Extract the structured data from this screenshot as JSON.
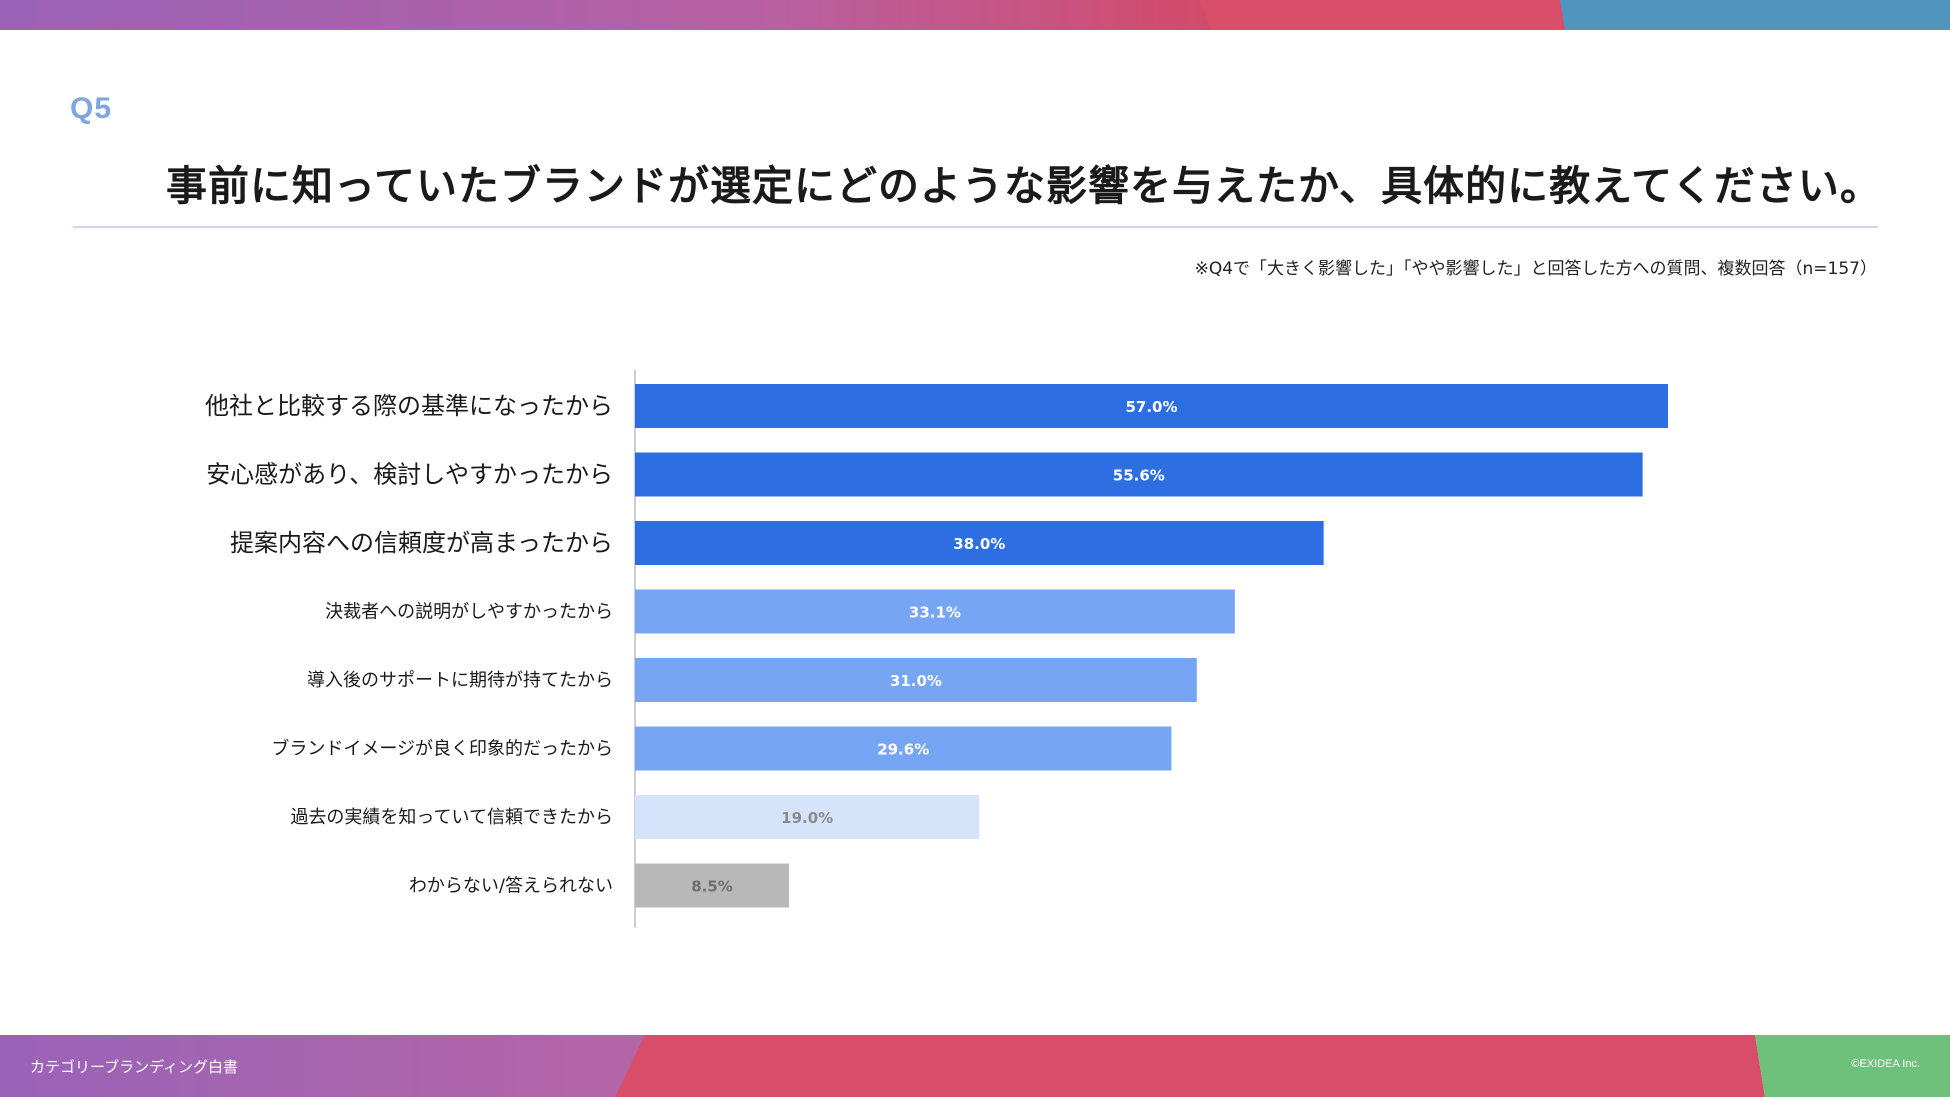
{
  "header": {
    "question_number": "Q5",
    "title": "事前に知っていたブランドが選定にどのような影響を与えたか、具体的に教えてください。",
    "note": "※Q4で「大きく影響した」「やや影響した」と回答した方への質問、複数回答（n=157）"
  },
  "footer": {
    "left": "カテゴリーブランディング白書",
    "right": "©EXIDEA Inc."
  },
  "colors": {
    "dark_blue": "#2d6fe3",
    "mid_blue": "#76a5f4",
    "light_blue": "#d6e4fb",
    "gray": "#b8b8b8",
    "question_accent": "#7fa6e0"
  },
  "chart_data": {
    "type": "bar",
    "orientation": "horizontal",
    "categories": [
      "他社と比較する際の基準になったから",
      "安心感があり、検討しやすかったから",
      "提案内容への信頼度が高まったから",
      "決裁者への説明がしやすかったから",
      "導入後のサポートに期待が持てたから",
      "ブランドイメージが良く印象的だったから",
      "過去の実績を知っていて信頼できたから",
      "わからない/答えられない"
    ],
    "values": [
      57.0,
      55.6,
      38.0,
      33.1,
      31.0,
      29.6,
      19.0,
      8.5
    ],
    "value_labels": [
      "57.0%",
      "55.6%",
      "38.0%",
      "33.1%",
      "31.0%",
      "29.6%",
      "19.0%",
      "8.5%"
    ],
    "bar_colors": [
      "#2d6fe3",
      "#2d6fe3",
      "#2d6fe3",
      "#76a5f4",
      "#76a5f4",
      "#76a5f4",
      "#d6e4fb",
      "#b8b8b8"
    ],
    "label_colors": [
      "#ffffff",
      "#ffffff",
      "#ffffff",
      "#ffffff",
      "#ffffff",
      "#ffffff",
      "#8a8a8a",
      "#6f6f6f"
    ],
    "emphasized": [
      true,
      true,
      true,
      false,
      false,
      false,
      false,
      false
    ],
    "xlim": [
      0,
      100
    ],
    "grid": false,
    "legend": "none"
  }
}
